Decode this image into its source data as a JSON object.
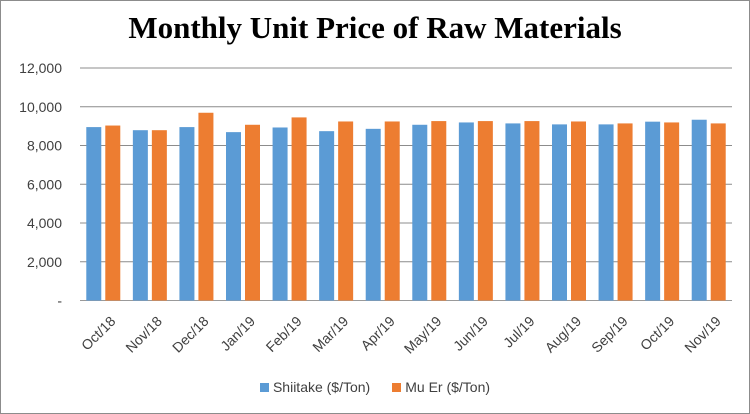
{
  "chart_data": {
    "type": "bar",
    "title": "Monthly Unit Price of Raw Materials",
    "xlabel": "",
    "ylabel": "",
    "ylim": [
      0,
      12000
    ],
    "yticks": [
      0,
      2000,
      4000,
      6000,
      8000,
      10000,
      12000
    ],
    "ytick_labels": [
      "-",
      "2,000",
      "4,000",
      "6,000",
      "8,000",
      "10,000",
      "12,000"
    ],
    "grid": true,
    "legend_position": "bottom",
    "categories": [
      "Oct/18",
      "Nov/18",
      "Dec/18",
      "Jan/19",
      "Feb/19",
      "Mar/19",
      "Apr/19",
      "May/19",
      "Jun/19",
      "Jul/19",
      "Aug/19",
      "Sep/19",
      "Oct/19",
      "Nov/19"
    ],
    "series": [
      {
        "name": "Shiitake ($/Ton)",
        "color": "#5b9bd5",
        "values": [
          8950,
          8790,
          8950,
          8690,
          8930,
          8740,
          8860,
          9070,
          9190,
          9140,
          9090,
          9090,
          9230,
          9330
        ]
      },
      {
        "name": "Mu Er ($/Ton)",
        "color": "#ed7d31",
        "values": [
          9030,
          8790,
          9690,
          9070,
          9450,
          9240,
          9240,
          9260,
          9260,
          9260,
          9240,
          9140,
          9190,
          9140
        ]
      }
    ]
  }
}
